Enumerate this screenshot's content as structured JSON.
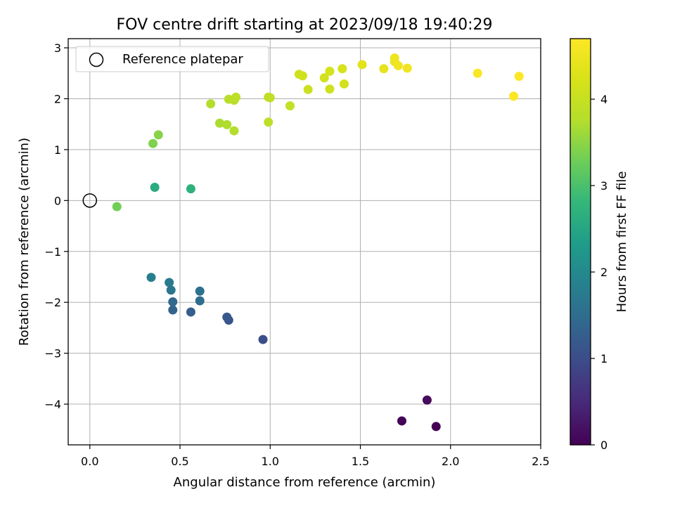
{
  "chart_data": {
    "type": "scatter",
    "title": "FOV centre drift starting at 2023/09/18 19:40:29",
    "xlabel": "Angular distance from reference (arcmin)",
    "ylabel": "Rotation from reference (arcmin)",
    "xlim": [
      -0.12,
      2.5
    ],
    "ylim": [
      -4.8,
      3.18
    ],
    "x_ticks": [
      0.0,
      0.5,
      1.0,
      1.5,
      2.0,
      2.5
    ],
    "x_tick_labels": [
      "0.0",
      "0.5",
      "1.0",
      "1.5",
      "2.0",
      "2.5"
    ],
    "y_ticks": [
      -4,
      -3,
      -2,
      -1,
      0,
      1,
      2,
      3
    ],
    "y_tick_labels": [
      "−4",
      "−3",
      "−2",
      "−1",
      "0",
      "1",
      "2",
      "3"
    ],
    "grid": true,
    "legend": {
      "position": "top-left",
      "entries": [
        "Reference platepar"
      ]
    },
    "reference_point": {
      "x": 0.0,
      "y": 0.0
    },
    "colorbar": {
      "label": "Hours from first FF file",
      "colormap": "viridis",
      "range": [
        0,
        4.7
      ],
      "ticks": [
        0,
        1,
        2,
        3,
        4
      ],
      "tick_labels": [
        "0",
        "1",
        "2",
        "3",
        "4"
      ]
    },
    "points": [
      {
        "x": 1.92,
        "y": -4.44,
        "c": 0.0
      },
      {
        "x": 1.73,
        "y": -4.33,
        "c": 0.05
      },
      {
        "x": 1.87,
        "y": -3.92,
        "c": 0.12
      },
      {
        "x": 0.96,
        "y": -2.73,
        "c": 1.02
      },
      {
        "x": 0.77,
        "y": -2.35,
        "c": 1.1
      },
      {
        "x": 0.76,
        "y": -2.29,
        "c": 1.18
      },
      {
        "x": 0.56,
        "y": -2.19,
        "c": 1.26
      },
      {
        "x": 0.46,
        "y": -2.15,
        "c": 1.34
      },
      {
        "x": 0.46,
        "y": -1.99,
        "c": 1.42
      },
      {
        "x": 0.61,
        "y": -1.97,
        "c": 1.5
      },
      {
        "x": 0.61,
        "y": -1.78,
        "c": 1.58
      },
      {
        "x": 0.45,
        "y": -1.76,
        "c": 1.66
      },
      {
        "x": 0.44,
        "y": -1.61,
        "c": 1.74
      },
      {
        "x": 0.34,
        "y": -1.51,
        "c": 1.82
      },
      {
        "x": 0.36,
        "y": 0.26,
        "c": 2.6
      },
      {
        "x": 0.56,
        "y": 0.23,
        "c": 2.7
      },
      {
        "x": 0.15,
        "y": -0.12,
        "c": 3.3
      },
      {
        "x": 0.35,
        "y": 1.12,
        "c": 3.4
      },
      {
        "x": 0.38,
        "y": 1.29,
        "c": 3.45
      },
      {
        "x": 0.72,
        "y": 1.52,
        "c": 3.7
      },
      {
        "x": 0.76,
        "y": 1.49,
        "c": 3.72
      },
      {
        "x": 0.8,
        "y": 1.37,
        "c": 3.75
      },
      {
        "x": 0.67,
        "y": 1.9,
        "c": 3.75
      },
      {
        "x": 0.77,
        "y": 1.99,
        "c": 3.8
      },
      {
        "x": 0.8,
        "y": 1.97,
        "c": 3.82
      },
      {
        "x": 0.81,
        "y": 2.03,
        "c": 3.85
      },
      {
        "x": 0.99,
        "y": 1.54,
        "c": 3.87
      },
      {
        "x": 0.99,
        "y": 2.03,
        "c": 3.88
      },
      {
        "x": 1.0,
        "y": 2.02,
        "c": 3.9
      },
      {
        "x": 1.11,
        "y": 1.86,
        "c": 3.95
      },
      {
        "x": 1.16,
        "y": 2.48,
        "c": 4.1
      },
      {
        "x": 1.18,
        "y": 2.45,
        "c": 4.12
      },
      {
        "x": 1.21,
        "y": 2.18,
        "c": 4.05
      },
      {
        "x": 1.3,
        "y": 2.41,
        "c": 4.15
      },
      {
        "x": 1.33,
        "y": 2.54,
        "c": 4.18
      },
      {
        "x": 1.33,
        "y": 2.19,
        "c": 4.1
      },
      {
        "x": 1.4,
        "y": 2.59,
        "c": 4.2
      },
      {
        "x": 1.41,
        "y": 2.29,
        "c": 4.15
      },
      {
        "x": 1.51,
        "y": 2.67,
        "c": 4.35
      },
      {
        "x": 1.63,
        "y": 2.59,
        "c": 4.4
      },
      {
        "x": 1.69,
        "y": 2.8,
        "c": 4.5
      },
      {
        "x": 1.69,
        "y": 2.73,
        "c": 4.5
      },
      {
        "x": 1.71,
        "y": 2.65,
        "c": 4.52
      },
      {
        "x": 1.76,
        "y": 2.6,
        "c": 4.55
      },
      {
        "x": 2.15,
        "y": 2.5,
        "c": 4.65
      },
      {
        "x": 2.38,
        "y": 2.44,
        "c": 4.7
      },
      {
        "x": 2.35,
        "y": 2.05,
        "c": 4.68
      }
    ]
  }
}
